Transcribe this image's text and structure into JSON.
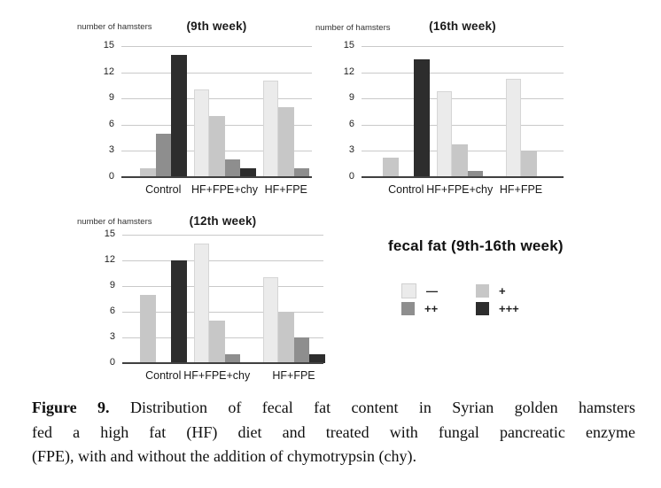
{
  "legend": {
    "title": "fecal fat (9th-16th week)",
    "items": [
      {
        "label": "—",
        "color": "#ebebeb"
      },
      {
        "label": "+",
        "color": "#c7c7c7"
      },
      {
        "label": "++",
        "color": "#8e8e8e"
      },
      {
        "label": "+++",
        "color": "#2d2d2d"
      }
    ]
  },
  "caption": {
    "label": "Figure 9.",
    "line1_rest": " Distribution of fecal fat content in Syrian golden hamsters",
    "line2": "fed a high fat (HF) diet and treated with fungal pancreatic enzyme",
    "line3": "(FPE), with and without the addition of chymotrypsin (chy)."
  },
  "chart_data": [
    {
      "type": "bar",
      "title": "(9th week)",
      "ylabel": "number of hamsters",
      "yticks": [
        0,
        3,
        6,
        9,
        12,
        15
      ],
      "ylim": [
        0,
        15
      ],
      "grid": true,
      "legend_position": "separate-panel",
      "categories": [
        "Control",
        "HF+FPE+chy",
        "HF+FPE"
      ],
      "groups": [
        {
          "label": "Control",
          "bars": [
            {
              "level": "+",
              "value": 1
            },
            {
              "level": "++",
              "value": 5
            },
            {
              "level": "+++",
              "value": 14
            }
          ]
        },
        {
          "label": "HF+FPE+chy",
          "bars": [
            {
              "level": "—",
              "value": 10
            },
            {
              "level": "+",
              "value": 7
            },
            {
              "level": "++",
              "value": 2
            },
            {
              "level": "+++",
              "value": 1
            }
          ]
        },
        {
          "label": "HF+FPE",
          "bars": [
            {
              "level": "—",
              "value": 11
            },
            {
              "level": "+",
              "value": 8
            },
            {
              "level": "++",
              "value": 1
            }
          ]
        }
      ]
    },
    {
      "type": "bar",
      "title": "(16th week)",
      "ylabel": "number of hamsters",
      "yticks": [
        0,
        3,
        6,
        9,
        12,
        15
      ],
      "ylim": [
        0,
        15
      ],
      "grid": true,
      "legend_position": "separate-panel",
      "categories": [
        "Control",
        "HF+FPE+chy",
        "HF+FPE"
      ],
      "groups": [
        {
          "label": "Control",
          "bars": [
            {
              "level": "+",
              "value": 2.2
            },
            {
              "level": "++",
              "value": 0
            },
            {
              "level": "+++",
              "value": 13.5
            }
          ]
        },
        {
          "label": "HF+FPE+chy",
          "bars": [
            {
              "level": "—",
              "value": 9.8
            },
            {
              "level": "+",
              "value": 3.7
            },
            {
              "level": "++",
              "value": 0.7
            },
            {
              "level": "+++",
              "value": 0
            }
          ]
        },
        {
          "label": "HF+FPE",
          "bars": [
            {
              "level": "—",
              "value": 11.3
            },
            {
              "level": "+",
              "value": 3
            }
          ]
        }
      ]
    },
    {
      "type": "bar",
      "title": "(12th week)",
      "ylabel": "number of hamsters",
      "yticks": [
        0,
        3,
        6,
        9,
        12,
        15
      ],
      "ylim": [
        0,
        15
      ],
      "grid": true,
      "legend_position": "separate-panel",
      "categories": [
        "Control",
        "HF+FPE+chy",
        "HF+FPE"
      ],
      "groups": [
        {
          "label": "Control",
          "bars": [
            {
              "level": "+",
              "value": 8
            },
            {
              "level": "++",
              "value": 0
            },
            {
              "level": "+++",
              "value": 12
            }
          ]
        },
        {
          "label": "HF+FPE+chy",
          "bars": [
            {
              "level": "—",
              "value": 14
            },
            {
              "level": "+",
              "value": 5
            },
            {
              "level": "++",
              "value": 1
            },
            {
              "level": "+++",
              "value": 0
            }
          ]
        },
        {
          "label": "HF+FPE",
          "bars": [
            {
              "level": "—",
              "value": 10
            },
            {
              "level": "+",
              "value": 6
            },
            {
              "level": "++",
              "value": 3
            },
            {
              "level": "+++",
              "value": 1
            }
          ]
        }
      ]
    }
  ]
}
